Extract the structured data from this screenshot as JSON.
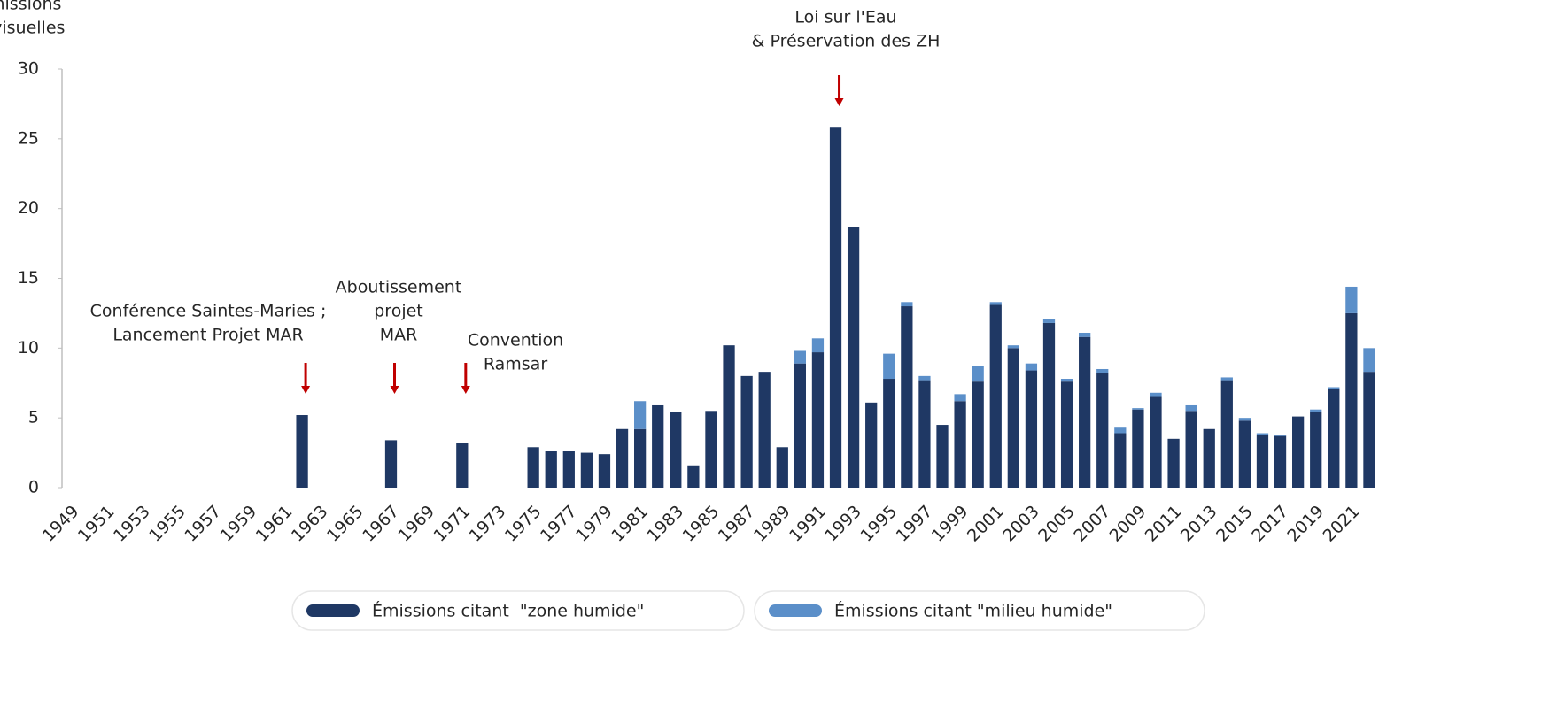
{
  "chart_data": {
    "type": "stacked_bar",
    "ylabel": [
      "Émissions",
      "télévisuelles"
    ],
    "categories": [
      "1949",
      null,
      "1951",
      null,
      "1953",
      null,
      "1955",
      null,
      "1957",
      null,
      "1959",
      null,
      "1961",
      null,
      "1963",
      null,
      "1965",
      null,
      "1967",
      null,
      "1969",
      null,
      "1971",
      null,
      "1973",
      null,
      "1975",
      null,
      "1977",
      null,
      "1979",
      null,
      "1981",
      null,
      "1983",
      null,
      "1985",
      null,
      "1987",
      null,
      "1989",
      null,
      "1991",
      null,
      "1993",
      null,
      "1995",
      null,
      "1997",
      null,
      "1999",
      null,
      "2001",
      null,
      "2003",
      null,
      "2005",
      null,
      "2007",
      null,
      "2009",
      null,
      "2011",
      null,
      "2013",
      null,
      "2015",
      null,
      "2017",
      null,
      "2019",
      null,
      "2021",
      null
    ],
    "series": [
      {
        "name": "Émissions citant  \"zone humide\"",
        "color": "#1f3864",
        "values": [
          0,
          0,
          0,
          0,
          0,
          0,
          0,
          0,
          0,
          0,
          0,
          0,
          0,
          5.2,
          0,
          0,
          0,
          0,
          3.4,
          0,
          0,
          0,
          3.2,
          0,
          0,
          0,
          2.9,
          2.6,
          2.6,
          2.5,
          2.4,
          4.2,
          4.2,
          5.9,
          5.4,
          1.6,
          5.5,
          10.2,
          8.0,
          8.3,
          2.9,
          8.9,
          9.7,
          25.8,
          18.7,
          6.1,
          7.8,
          13.0,
          7.7,
          4.5,
          6.2,
          7.6,
          13.1,
          10.0,
          8.4,
          11.8,
          7.6,
          10.8,
          8.2,
          3.9,
          5.6,
          6.5,
          3.5,
          5.5,
          4.2,
          7.7,
          4.8,
          3.8,
          3.7,
          5.1,
          5.4,
          7.1,
          12.5,
          8.3
        ]
      },
      {
        "name": "Émissions citant \"milieu humide\"",
        "color": "#5b8fc9",
        "values": [
          0,
          0,
          0,
          0,
          0,
          0,
          0,
          0,
          0,
          0,
          0,
          0,
          0,
          0,
          0,
          0,
          0,
          0,
          0,
          0,
          0,
          0,
          0,
          0,
          0,
          0,
          0,
          0,
          0,
          0,
          0,
          0,
          2.0,
          0,
          0,
          0,
          0,
          0,
          0,
          0,
          0,
          0.9,
          1.0,
          0,
          0,
          0,
          1.8,
          0.3,
          0.3,
          0,
          0.5,
          1.1,
          0.2,
          0.2,
          0.5,
          0.3,
          0.2,
          0.3,
          0.3,
          0.4,
          0.1,
          0.3,
          0,
          0.4,
          0,
          0.2,
          0.2,
          0.1,
          0.1,
          0,
          0.2,
          0.1,
          1.9,
          1.7
        ]
      }
    ],
    "ylim": [
      0,
      30
    ],
    "yticks": [
      0,
      5,
      10,
      15,
      20,
      25,
      30
    ],
    "annotations": [
      [
        "Conférence Saintes-Maries ;",
        "Lancement Projet MAR"
      ],
      [
        "Aboutissement",
        "projet",
        "MAR"
      ],
      [
        "Convention",
        "Ramsar"
      ],
      [
        "Loi sur l'Eau",
        "& Préservation des ZH"
      ]
    ],
    "annotation_color": "#c00000"
  }
}
